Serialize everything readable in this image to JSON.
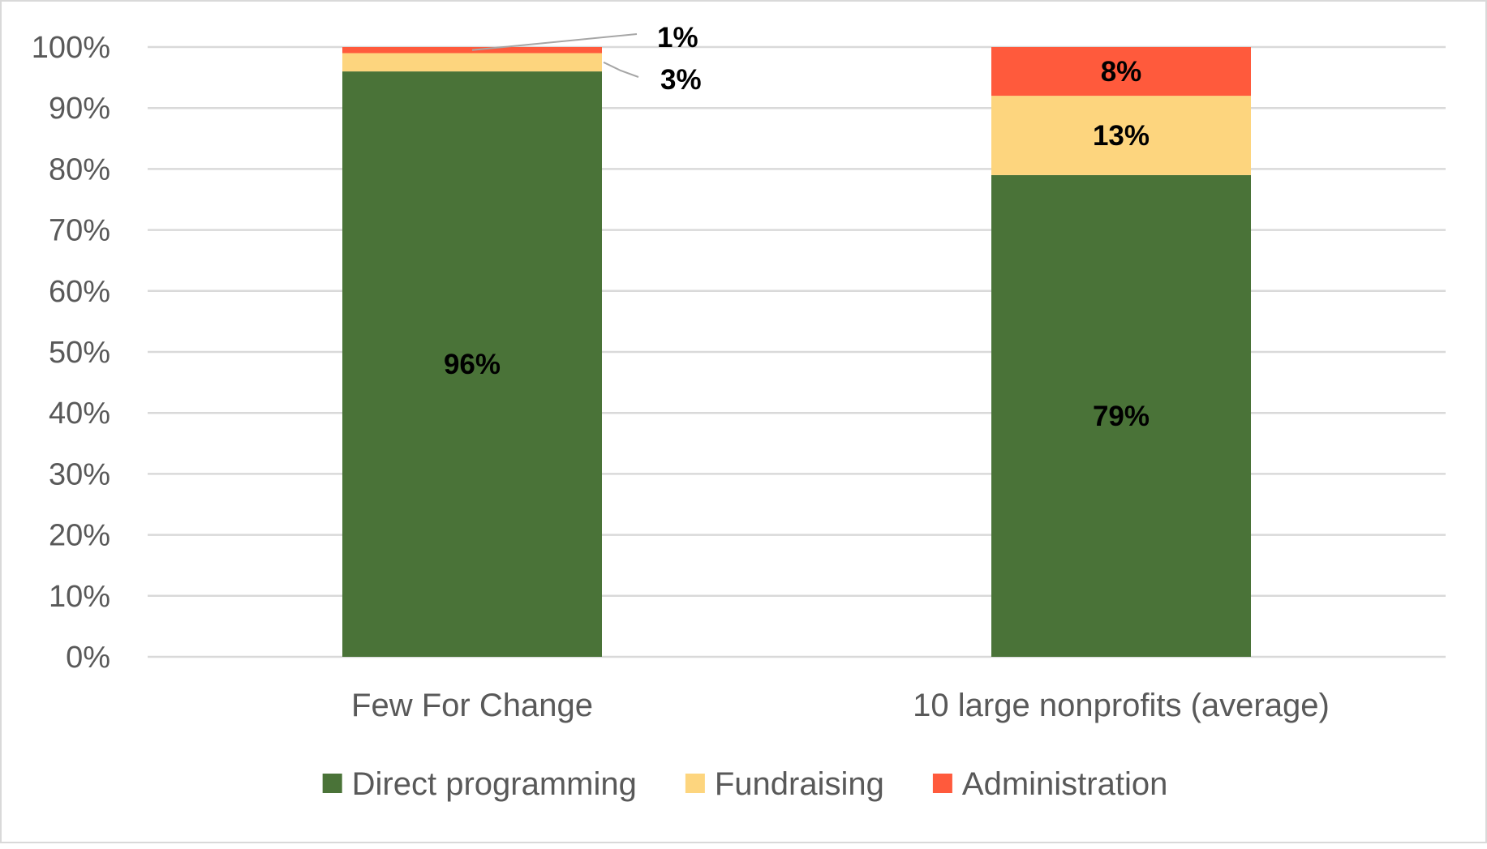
{
  "chart_data": {
    "type": "bar",
    "stacked": true,
    "categories": [
      "Few For Change",
      "10 large nonprofits (average)"
    ],
    "series": [
      {
        "name": "Direct programming",
        "values": [
          96,
          79
        ],
        "color": "#4a7338"
      },
      {
        "name": "Fundraising",
        "values": [
          3,
          13
        ],
        "color": "#fdd57e"
      },
      {
        "name": "Administration",
        "values": [
          1,
          8
        ],
        "color": "#ff5a3c"
      }
    ],
    "data_labels": [
      [
        "96%",
        "79%"
      ],
      [
        "3%",
        "13%"
      ],
      [
        "1%",
        "8%"
      ]
    ],
    "ylim": [
      0,
      100
    ],
    "yticks": [
      0,
      10,
      20,
      30,
      40,
      50,
      60,
      70,
      80,
      90,
      100
    ],
    "ytick_labels": [
      "0%",
      "10%",
      "20%",
      "30%",
      "40%",
      "50%",
      "60%",
      "70%",
      "80%",
      "90%",
      "100%"
    ],
    "title": "",
    "xlabel": "",
    "ylabel": "",
    "grid": true,
    "gridline_color": "#d9d9d9",
    "axis_text_color": "#595959",
    "legend_position": "bottom"
  }
}
